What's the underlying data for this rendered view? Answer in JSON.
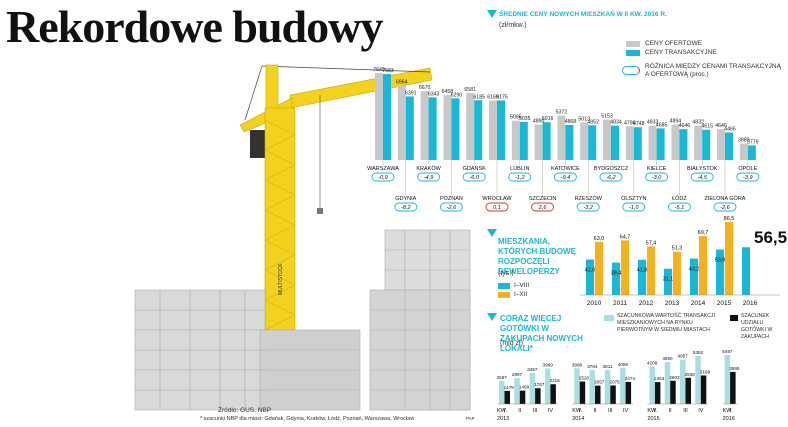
{
  "title": "Rekordowe budowy",
  "source": "Źródło: GUS, NBP",
  "footnote": "* szacunki NBP dla miast: Gdańsk, Gdynia, Kraków, Łódź, Poznań, Warszawa, Wrocław",
  "crane_label": "MULTISTOCK",
  "agency": "PAP",
  "colors": {
    "accent": "#18b9d8",
    "gray": "#c8c8c8",
    "yellow": "#f5b21a",
    "black": "#111111",
    "lightblue": "#a9dfe2",
    "red": "#e0333a"
  },
  "section1": {
    "title": "ŚREDNIE CENY NOWYCH MIESZKAŃ W II KW. 2016 R.",
    "unit": "(zł/mkw.)",
    "legend": {
      "offer": "CENY OFERTOWE",
      "transaction": "CENY TRANSAKCYJNE",
      "diff": "RÓŻNICA MIĘDZY CENAMI TRANSAKCYJNĄ A OFERTOWĄ (proc.)"
    }
  },
  "section2": {
    "title": "MIESZKANIA, KTÓRYCH BUDOWĘ ROZPOCZĘLI DEWELOPERZY",
    "unit": "(tys.)",
    "legend": {
      "h1": "I–VIII",
      "full": "I–XII"
    },
    "highlight": "56,5"
  },
  "section3": {
    "title": "CORAZ WIĘCEJ GOTÓWKI W ZAKUPACH NOWYCH LOKALI*",
    "unit": "(mld zł)",
    "legend": {
      "value": "SZACUNKOWA WARTOŚĆ TRANSAKCJI MIESZKANIOWYCH NA RYNKU PIERWOTNYM W SIEDMIU MIASTACH",
      "cash": "SZACUNEK UDZIAŁU GOTÓWKI W ZAKUPACH"
    }
  },
  "chart_data": [
    {
      "type": "bar",
      "title": "ŚREDNIE CENY NOWYCH MIESZKAŃ W II KW. 2016 R.",
      "ylabel": "zł/mkw.",
      "categories": [
        "WARSZAWA",
        "GDYNIA",
        "KRAKÓW",
        "POZNAŃ",
        "GDAŃSK",
        "WROCŁAW",
        "LUBLIN",
        "SZCZECIN",
        "KATOWICE",
        "RZESZÓW",
        "BYDGOSZCZ",
        "OLSZTYN",
        "KIELCE",
        "ŁÓDŹ",
        "BIAŁYSTOK",
        "ZIELONA GÓRA",
        "OPOLE"
      ],
      "series": [
        {
          "name": "CENY OFERTOWE",
          "values": [
            7649,
            6964,
            6670,
            6458,
            6581,
            6169,
            5095,
            4890,
            5372,
            5013,
            5153,
            4798,
            4833,
            4894,
            4832,
            4646,
            3880
          ]
        },
        {
          "name": "CENY TRANSAKCYJNE",
          "values": [
            7583,
            6391,
            6343,
            6290,
            6185,
            6175,
            5035,
            5016,
            4868,
            4852,
            4834,
            4748,
            4685,
            4646,
            4615,
            4466,
            3779
          ]
        },
        {
          "name": "RÓŻNICA MIĘDZY CENAMI TRANSAKCYJNĄ A OFERTOWĄ (proc.)",
          "values": [
            "-0,9",
            "-8,2",
            "-4,9",
            "-2,6",
            "-6,0",
            "0,1",
            "-1,2",
            "2,6",
            "-9,4",
            "-3,2",
            "-6,2",
            "-1,0",
            "-3,0",
            "-5,1",
            "-4,5",
            "-2,6",
            "-3,9"
          ]
        }
      ]
    },
    {
      "type": "bar",
      "title": "MIESZKANIA, KTÓRYCH BUDOWĘ ROZPOCZĘLI DEWELOPERZY",
      "ylabel": "tys.",
      "categories": [
        "2010",
        "2011",
        "2012",
        "2013",
        "2014",
        "2015",
        "2016"
      ],
      "series": [
        {
          "name": "I–VIII",
          "values": [
            42.0,
            38.4,
            41.8,
            31.1,
            43.2,
            53.9,
            56.5
          ],
          "labels": [
            "42,0",
            "38,4",
            "41,8",
            "31,1",
            "43,2",
            "53,9",
            "56,5"
          ]
        },
        {
          "name": "I–XII",
          "values": [
            63.0,
            64.7,
            57.4,
            51.3,
            69.7,
            86.5,
            null
          ],
          "labels": [
            "63,0",
            "64,7",
            "57,4",
            "51,3",
            "69,7",
            "86,5",
            ""
          ]
        }
      ]
    },
    {
      "type": "bar",
      "title": "CORAZ WIĘCEJ GOTÓWKI W ZAKUPACH NOWYCH LOKALI*",
      "ylabel": "mld zł",
      "categories": [
        "I",
        "II",
        "III",
        "IV",
        "I",
        "II",
        "III",
        "IV",
        "I",
        "II",
        "III",
        "IV",
        "I"
      ],
      "groups": [
        {
          "label": "KW.\n2013",
          "start": 0,
          "count": 4
        },
        {
          "label": "KW.\n2014",
          "start": 4,
          "count": 4
        },
        {
          "label": "KW.\n2015",
          "start": 8,
          "count": 4
        },
        {
          "label": "KW.\n2016",
          "start": 12,
          "count": 1
        }
      ],
      "group_labels": [
        "2013",
        "2014",
        "2015",
        "2016"
      ],
      "series": [
        {
          "name": "SZACUNKOWA WARTOŚĆ TRANSAKCJI MIESZKANIOWYCH NA RYNKU PIERWOTNYM W SIEDMIU MIASTACH",
          "values": [
            2597,
            2897,
            3457,
            3989,
            3998,
            3794,
            3811,
            4059,
            4209,
            4690,
            4957,
            5392,
            5497
          ]
        },
        {
          "name": "SZACUNEK UDZIAŁU GOTÓWKI W ZAKUPACH",
          "values": [
            1478,
            1499,
            1767,
            2215,
            2520,
            2057,
            2075,
            2474,
            2453,
            2603,
            2938,
            3198,
            3595
          ]
        }
      ]
    }
  ]
}
